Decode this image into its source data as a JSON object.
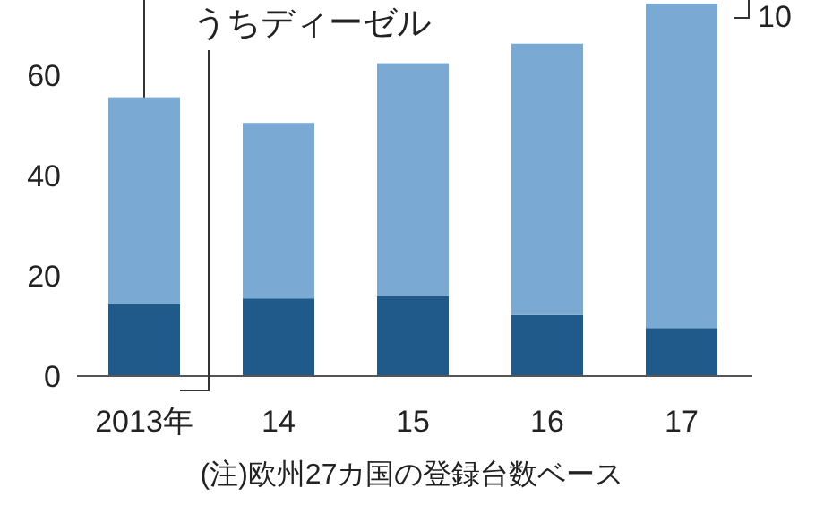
{
  "chart_data": {
    "type": "bar",
    "stacked": true,
    "categories": [
      "2013年",
      "14",
      "15",
      "16",
      "17"
    ],
    "series": [
      {
        "name": "うちディーゼル",
        "color": "#1f5a8a",
        "values": [
          14.3,
          15.5,
          16.0,
          12.2,
          9.6
        ]
      },
      {
        "color": "#7aaad3",
        "values": [
          41.3,
          35.0,
          46.4,
          54.1,
          64.7
        ]
      }
    ],
    "ylim": [
      0,
      75
    ],
    "yticks": [
      0,
      20,
      40,
      60
    ],
    "annotations": [
      "10",
      "(注)欧州27カ国の登録台数ベース"
    ]
  }
}
